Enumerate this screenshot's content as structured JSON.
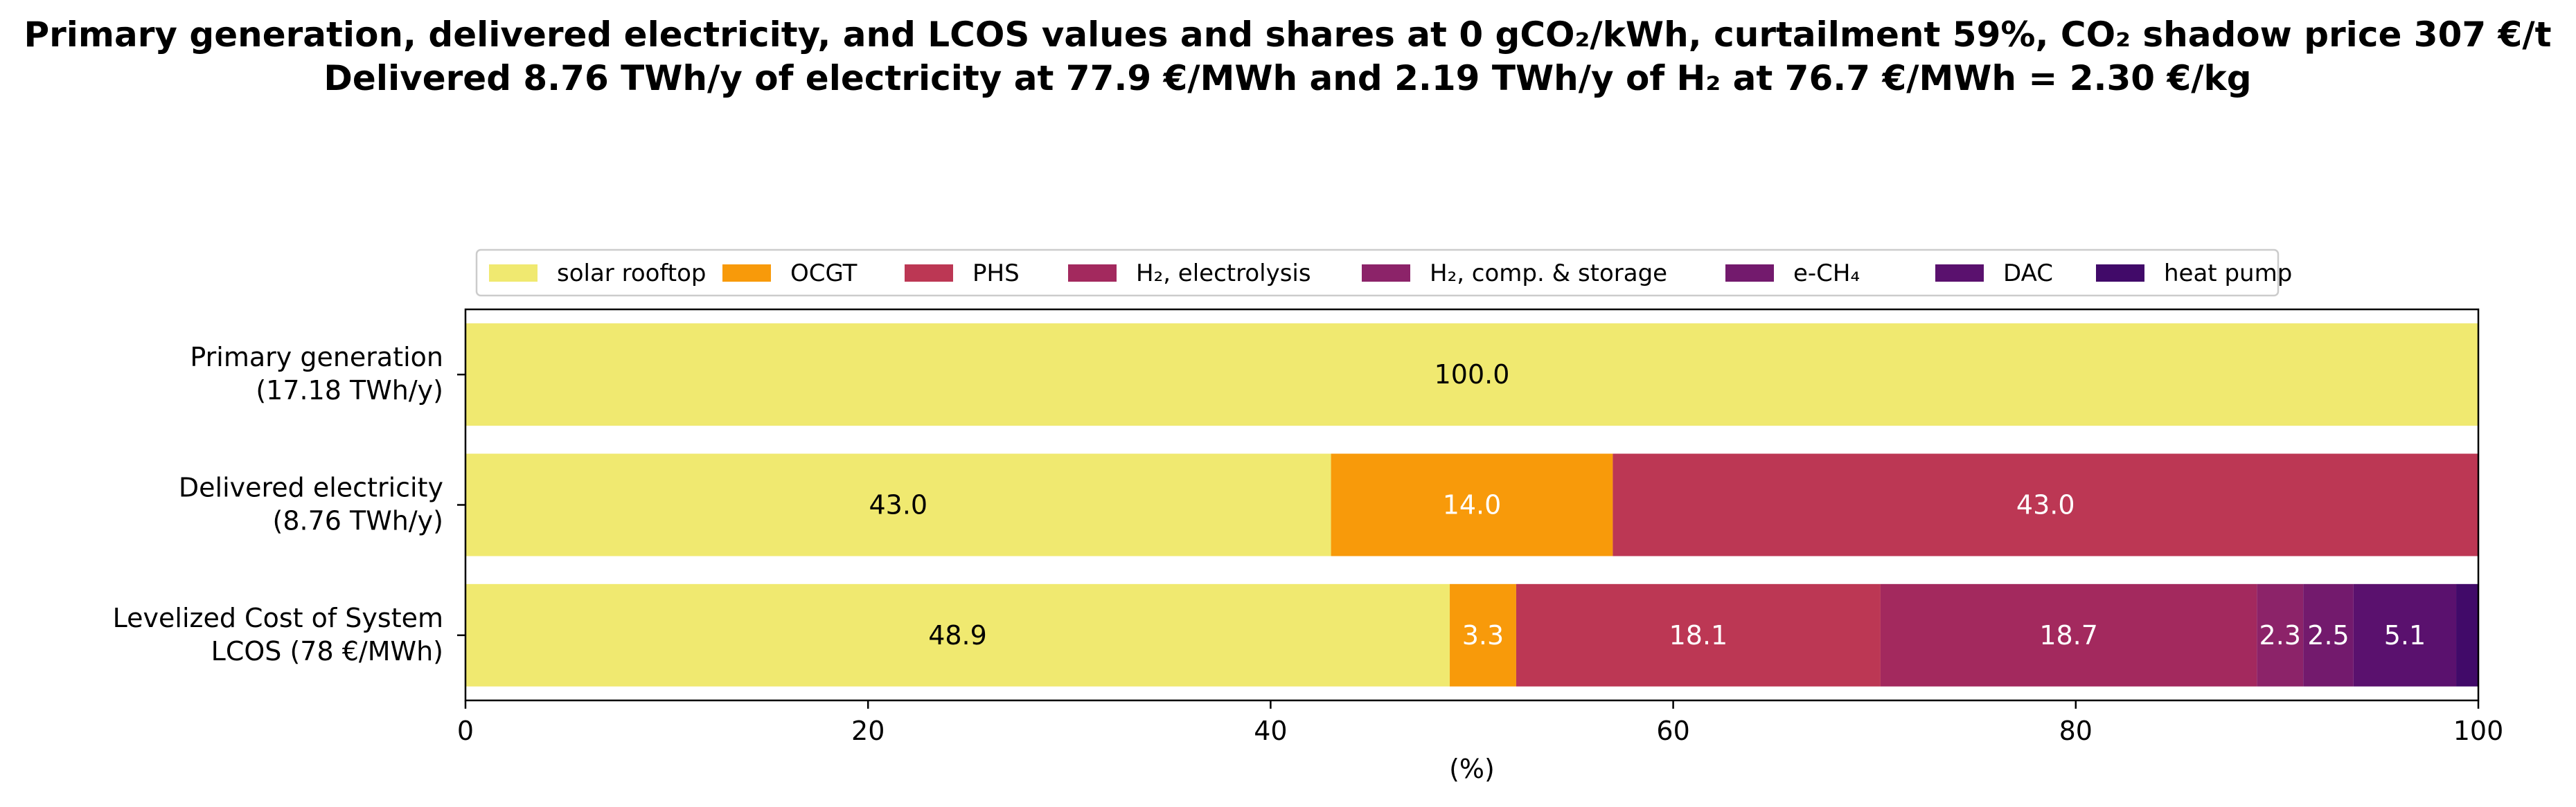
{
  "title": {
    "line1": "Primary generation, delivered electricity, and LCOS values and shares at 0 gCO₂/kWh, curtailment 59%, CO₂ shadow price 307 €/t",
    "line2": "Delivered 8.76 TWh/y of electricity at 77.9 €/MWh and 2.19 TWh/y of H₂ at 76.7 €/MWh = 2.30 €/kg"
  },
  "chart_data": {
    "type": "bar",
    "orientation": "horizontal-stacked",
    "xlabel": "(%)",
    "xlim": [
      0,
      100
    ],
    "xticks": [
      0,
      20,
      40,
      60,
      80,
      100
    ],
    "legend_placement": "top-center",
    "grid": false,
    "categories": [
      [
        "Primary generation",
        "(17.18 TWh/y)"
      ],
      [
        "Delivered electricity ",
        "(8.76 TWh/y)"
      ],
      [
        "Levelized Cost of System",
        "LCOS  (78 €/MWh)"
      ]
    ],
    "series": [
      {
        "name": "solar rooftop",
        "color": "#f0e970",
        "label_color": "#000000",
        "values": [
          100.0,
          43.0,
          48.9
        ]
      },
      {
        "name": "OCGT",
        "color": "#f89a0a",
        "label_color": "#ffffff",
        "values": [
          0,
          14.0,
          3.3
        ]
      },
      {
        "name": "PHS",
        "color": "#bc3754",
        "label_color": "#ffffff",
        "values": [
          0,
          43.0,
          18.1
        ]
      },
      {
        "name": "H₂, electrolysis",
        "color": "#a3295e",
        "label_color": "#ffffff",
        "values": [
          0,
          0,
          18.7
        ]
      },
      {
        "name": "H₂, comp. & storage",
        "color": "#8c2369",
        "label_color": "#ffffff",
        "values": [
          0,
          0,
          2.3
        ]
      },
      {
        "name": "e-CH₄",
        "color": "#731a6d",
        "label_color": "#ffffff",
        "values": [
          0,
          0,
          2.5
        ]
      },
      {
        "name": "DAC",
        "color": "#5a116e",
        "label_color": "#ffffff",
        "values": [
          0,
          0,
          5.1
        ]
      },
      {
        "name": "heat pump",
        "color": "#410a69",
        "label_color": "#ffffff",
        "values": [
          0,
          0,
          1.1
        ]
      }
    ],
    "data_labels": [
      [
        "100.0"
      ],
      [
        "43.0",
        "14.0",
        "43.0"
      ],
      [
        "48.9",
        "3.3",
        "18.1",
        "18.7",
        "2.3",
        "2.5",
        "5.1"
      ]
    ]
  }
}
